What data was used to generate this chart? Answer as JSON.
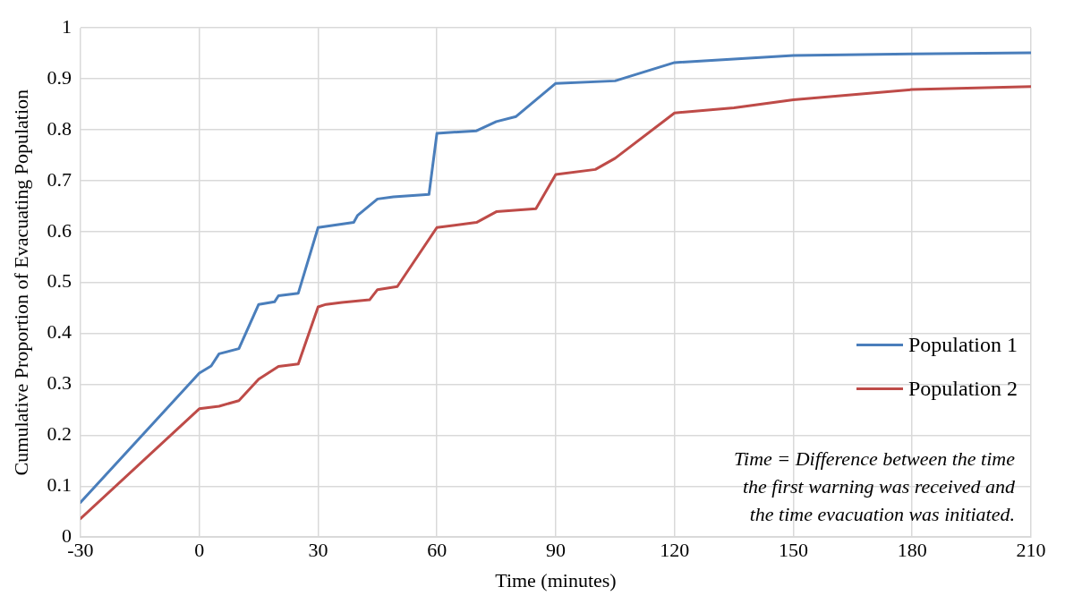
{
  "chart_data": {
    "type": "line",
    "xlabel": "Time (minutes)",
    "ylabel": "Cumulative Proportion of Evacuating Population",
    "xlim": [
      -30,
      210
    ],
    "xticks": [
      -30,
      0,
      30,
      60,
      90,
      120,
      150,
      180,
      210
    ],
    "ylim": [
      0,
      1
    ],
    "yticks": [
      0,
      0.1,
      0.2,
      0.3,
      0.4,
      0.5,
      0.6,
      0.7,
      0.8,
      0.9,
      1
    ],
    "grid": true,
    "legend": "bottom right",
    "marker": "none",
    "line_style": "solid",
    "annotations": [
      "Time = Difference between the time\nthe first warning was received and\nthe time evacuation was initiated."
    ],
    "series": [
      {
        "name": "Population 1",
        "color": "#4a7ebb",
        "x": [
          -30,
          0,
          3,
          5,
          10,
          15,
          19,
          20,
          25,
          30,
          39,
          40,
          45,
          49,
          58,
          60,
          70,
          75,
          80,
          90,
          105,
          120,
          150,
          180,
          210
        ],
        "values": [
          0.068,
          0.322,
          0.336,
          0.36,
          0.37,
          0.457,
          0.462,
          0.474,
          0.479,
          0.608,
          0.618,
          0.632,
          0.664,
          0.668,
          0.673,
          0.793,
          0.798,
          0.816,
          0.826,
          0.891,
          0.896,
          0.932,
          0.946,
          0.949,
          0.951
        ]
      },
      {
        "name": "Population 2",
        "color": "#be4b48",
        "x": [
          -30,
          0,
          5,
          10,
          15,
          20,
          25,
          30,
          32,
          36,
          43,
          45,
          50,
          60,
          70,
          75,
          85,
          90,
          100,
          105,
          120,
          135,
          150,
          180,
          210
        ],
        "values": [
          0.036,
          0.252,
          0.257,
          0.268,
          0.31,
          0.335,
          0.34,
          0.452,
          0.457,
          0.461,
          0.466,
          0.486,
          0.492,
          0.608,
          0.618,
          0.639,
          0.645,
          0.712,
          0.722,
          0.744,
          0.833,
          0.843,
          0.859,
          0.879,
          0.885
        ]
      }
    ]
  }
}
